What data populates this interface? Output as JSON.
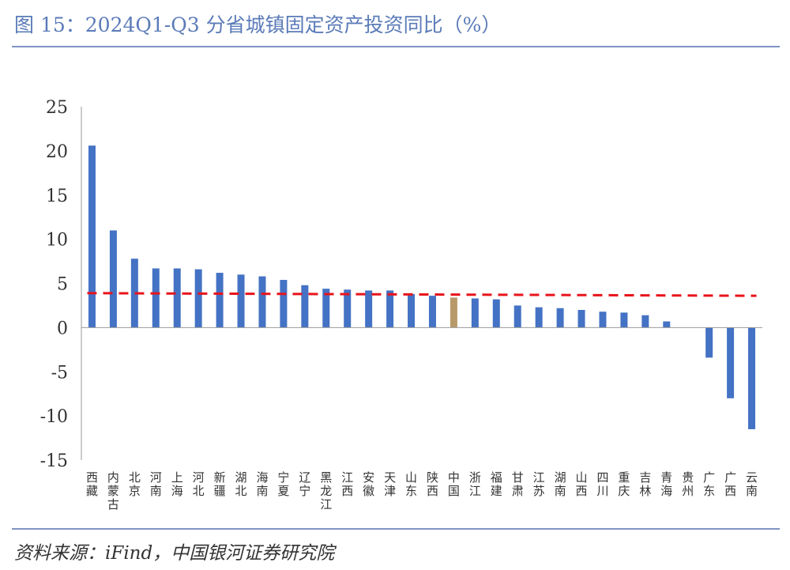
{
  "header": {
    "title": "图 15：2024Q1-Q3 分省城镇固定资产投资同比（%）"
  },
  "footer": {
    "source": "资料来源：iFind，中国银河证券研究院"
  },
  "colors": {
    "bar": "#4472c4",
    "highlight": "#b89a6a",
    "reference_line": "#e8141b",
    "axis": "#999999"
  },
  "chart_data": {
    "type": "bar",
    "title": "",
    "xlabel": "",
    "ylabel": "",
    "ylim": [
      -15,
      25
    ],
    "yticks": [
      25,
      20,
      15,
      10,
      5,
      0,
      -5,
      -10,
      -15
    ],
    "categories": [
      "西藏",
      "内蒙古",
      "北京",
      "河南",
      "上海",
      "河北",
      "新疆",
      "湖北",
      "海南",
      "宁夏",
      "辽宁",
      "黑龙江",
      "江西",
      "安徽",
      "天津",
      "山东",
      "陕西",
      "中国",
      "浙江",
      "福建",
      "甘肃",
      "江苏",
      "湖南",
      "山西",
      "四川",
      "重庆",
      "吉林",
      "青海",
      "贵州",
      "广东",
      "广西",
      "云南"
    ],
    "values": [
      20.6,
      11.0,
      7.8,
      6.7,
      6.7,
      6.6,
      6.2,
      6.0,
      5.8,
      5.4,
      4.8,
      4.4,
      4.3,
      4.2,
      4.2,
      3.8,
      3.6,
      3.4,
      3.3,
      3.2,
      2.5,
      2.3,
      2.2,
      2.0,
      1.8,
      1.7,
      1.4,
      0.7,
      0.0,
      -3.4,
      -8.0,
      -11.5
    ],
    "highlight_category": "中国",
    "reference_line": {
      "style": "dashed",
      "start_value": 3.9,
      "end_value": 3.6
    }
  }
}
